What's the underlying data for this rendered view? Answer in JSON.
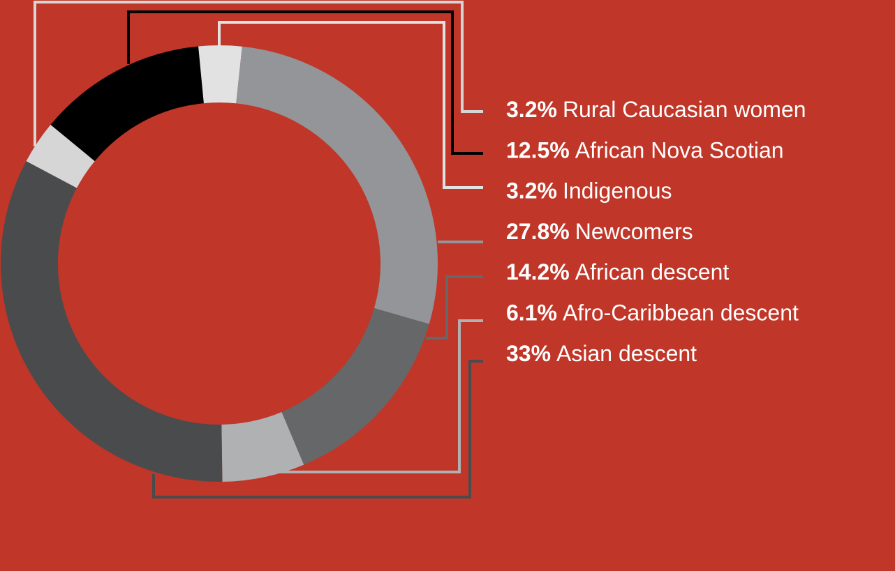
{
  "chart_data": {
    "type": "donut",
    "categories": [
      "Rural Caucasian women",
      "African Nova Scotian",
      "Indigenous",
      "Newcomers",
      "African descent",
      "Afro-Caribbean descent",
      "Asian descent"
    ],
    "values": [
      3.2,
      12.5,
      3.2,
      27.8,
      14.2,
      6.1,
      33
    ],
    "value_labels": [
      "3.2%",
      "12.5%",
      "3.2%",
      "27.8%",
      "14.2%",
      "6.1%",
      "33%"
    ],
    "colors": [
      "#d6d6d7",
      "#000000",
      "#e2e2e3",
      "#939598",
      "#666769",
      "#b0b1b3",
      "#4a4b4d"
    ]
  }
}
